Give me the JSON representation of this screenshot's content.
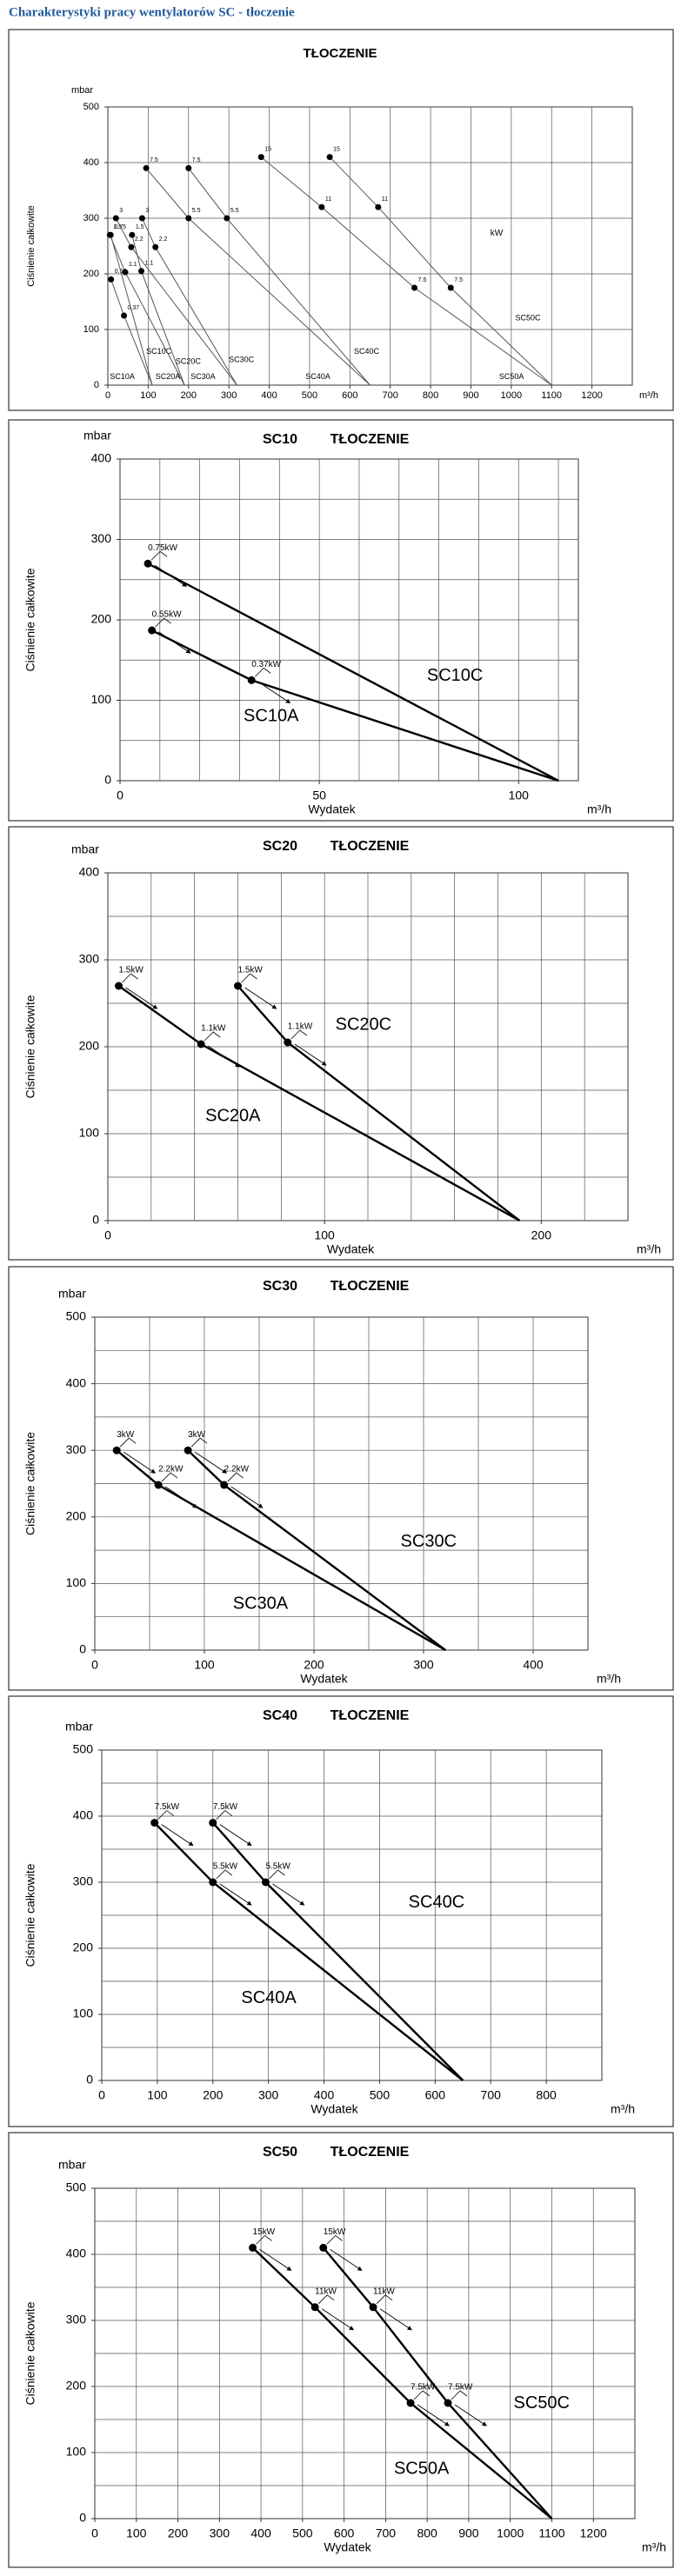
{
  "header": {
    "title": "Charakterystyki pracy wentylatorów SC - tłoczenie"
  },
  "chart_data": [
    {
      "type": "line",
      "title": "TŁOCZENIE",
      "y_unit": "mbar",
      "y_label": "Ciśnienie całkowite",
      "x_unit": "m³/h",
      "note": "kW",
      "xlim": [
        0,
        1300
      ],
      "xticks": [
        0,
        100,
        200,
        300,
        400,
        500,
        600,
        700,
        800,
        900,
        1000,
        1100,
        1200
      ],
      "xgrid": [
        100,
        200,
        300,
        400,
        500,
        600,
        700,
        800,
        900,
        1000,
        1100,
        1200
      ],
      "ylim": [
        0,
        500
      ],
      "yticks": [
        0,
        100,
        200,
        300,
        400,
        500
      ],
      "ygrid": [
        100,
        200,
        300,
        400
      ],
      "series": [
        {
          "name": "SC10A",
          "color": "#555555",
          "x": [
            8,
            40,
            110
          ],
          "values": [
            190,
            125,
            0
          ],
          "value_labels": [
            "0.55",
            "0.37",
            null
          ]
        },
        {
          "name": "SC10C",
          "color": "#555555",
          "x": [
            7,
            110
          ],
          "values": [
            270,
            0
          ],
          "value_labels": [
            "0.75",
            null
          ]
        },
        {
          "name": "SC20A",
          "color": "#555555",
          "x": [
            5,
            43,
            190
          ],
          "values": [
            270,
            203,
            0
          ],
          "value_labels": [
            "1.5",
            "1.1",
            null
          ]
        },
        {
          "name": "SC20C",
          "color": "#555555",
          "x": [
            60,
            83,
            190
          ],
          "values": [
            270,
            205,
            0
          ],
          "value_labels": [
            "1.5",
            "1.1",
            null
          ]
        },
        {
          "name": "SC30A",
          "color": "#555555",
          "x": [
            20,
            58,
            320
          ],
          "values": [
            300,
            248,
            0
          ],
          "value_labels": [
            "3",
            "2.2",
            null
          ]
        },
        {
          "name": "SC30C",
          "color": "#555555",
          "x": [
            85,
            118,
            320
          ],
          "values": [
            300,
            248,
            0
          ],
          "value_labels": [
            "3",
            "2.2",
            null
          ]
        },
        {
          "name": "SC40A",
          "color": "#555555",
          "x": [
            95,
            200,
            650
          ],
          "values": [
            390,
            300,
            0
          ],
          "value_labels": [
            "7.5",
            "5.5",
            null
          ]
        },
        {
          "name": "SC40C",
          "color": "#555555",
          "x": [
            200,
            295,
            650
          ],
          "values": [
            390,
            300,
            0
          ],
          "value_labels": [
            "7.5",
            "5.5",
            null
          ]
        },
        {
          "name": "SC50A",
          "color": "#555555",
          "x": [
            380,
            530,
            760,
            1100
          ],
          "values": [
            410,
            320,
            175,
            0
          ],
          "value_labels": [
            "15",
            "11",
            "7.5",
            null
          ]
        },
        {
          "name": "SC50C",
          "color": "#555555",
          "x": [
            550,
            670,
            850,
            1100
          ],
          "values": [
            410,
            320,
            175,
            0
          ],
          "value_labels": [
            "15",
            "11",
            "7.5",
            null
          ]
        }
      ]
    },
    {
      "type": "line",
      "subtitle": "SC10",
      "title": "TŁOCZENIE",
      "y_unit": "mbar",
      "y_label": "Ciśnienie całkowite",
      "x_label": "Wydatek",
      "x_unit": "m³/h",
      "xlim": [
        0,
        115
      ],
      "xticks": [
        0,
        50,
        100
      ],
      "xgrid": [
        10,
        20,
        30,
        40,
        50,
        60,
        70,
        80,
        90,
        100,
        110
      ],
      "ylim": [
        0,
        400
      ],
      "yticks": [
        0,
        100,
        200,
        300,
        400
      ],
      "ygrid": [
        50,
        100,
        150,
        200,
        250,
        300,
        350
      ],
      "series": [
        {
          "name": "SC10C",
          "color": "#000000",
          "x": [
            7,
            110
          ],
          "values": [
            270,
            0
          ],
          "value_labels": [
            "0.75kW",
            null
          ]
        },
        {
          "name": "SC10A",
          "color": "#000000",
          "x": [
            8,
            33,
            110
          ],
          "values": [
            187,
            125,
            0
          ],
          "value_labels": [
            "0.55kW",
            "0.37kW",
            null
          ]
        }
      ]
    },
    {
      "type": "line",
      "subtitle": "SC20",
      "title": "TŁOCZENIE",
      "y_unit": "mbar",
      "y_label": "Ciśnienie całkowite",
      "x_label": "Wydatek",
      "x_unit": "m³/h",
      "xlim": [
        0,
        240
      ],
      "xticks": [
        0,
        100,
        200
      ],
      "xgrid": [
        20,
        40,
        60,
        80,
        100,
        120,
        140,
        160,
        180,
        200,
        220
      ],
      "ylim": [
        0,
        400
      ],
      "yticks": [
        0,
        100,
        200,
        300,
        400
      ],
      "ygrid": [
        50,
        100,
        150,
        200,
        250,
        300,
        350
      ],
      "series": [
        {
          "name": "SC20C",
          "color": "#000000",
          "x": [
            60,
            83,
            190
          ],
          "values": [
            270,
            205,
            0
          ],
          "value_labels": [
            "1.5kW",
            "1.1kW",
            null
          ]
        },
        {
          "name": "SC20A",
          "color": "#000000",
          "x": [
            5,
            43,
            190
          ],
          "values": [
            270,
            203,
            0
          ],
          "value_labels": [
            "1.5kW",
            "1.1kW",
            null
          ]
        }
      ]
    },
    {
      "type": "line",
      "subtitle": "SC30",
      "title": "TŁOCZENIE",
      "y_unit": "mbar",
      "y_label": "Ciśnienie całkowite",
      "x_label": "Wydatek",
      "x_unit": "m³/h",
      "xlim": [
        0,
        450
      ],
      "xticks": [
        0,
        100,
        200,
        300,
        400
      ],
      "xgrid": [
        50,
        100,
        150,
        200,
        250,
        300,
        350,
        400
      ],
      "ylim": [
        0,
        500
      ],
      "yticks": [
        0,
        100,
        200,
        300,
        400,
        500
      ],
      "ygrid": [
        50,
        100,
        150,
        200,
        250,
        300,
        350,
        400,
        450
      ],
      "series": [
        {
          "name": "SC30C",
          "color": "#000000",
          "x": [
            85,
            118,
            320
          ],
          "values": [
            300,
            248,
            0
          ],
          "value_labels": [
            "3kW",
            "2.2kW",
            null
          ]
        },
        {
          "name": "SC30A",
          "color": "#000000",
          "x": [
            20,
            58,
            320
          ],
          "values": [
            300,
            248,
            0
          ],
          "value_labels": [
            "3kW",
            "2.2kW",
            null
          ]
        }
      ]
    },
    {
      "type": "line",
      "subtitle": "SC40",
      "title": "TŁOCZENIE",
      "y_unit": "mbar",
      "y_label": "Ciśnienie całkowite",
      "x_label": "Wydatek",
      "x_unit": "m³/h",
      "xlim": [
        0,
        900
      ],
      "xticks": [
        0,
        100,
        200,
        300,
        400,
        500,
        600,
        700,
        800
      ],
      "xgrid": [
        100,
        200,
        300,
        400,
        500,
        600,
        700,
        800
      ],
      "ylim": [
        0,
        500
      ],
      "yticks": [
        0,
        100,
        200,
        300,
        400,
        500
      ],
      "ygrid": [
        50,
        100,
        150,
        200,
        250,
        300,
        350,
        400,
        450
      ],
      "series": [
        {
          "name": "SC40C",
          "color": "#000000",
          "x": [
            200,
            295,
            650
          ],
          "values": [
            390,
            300,
            0
          ],
          "value_labels": [
            "7.5kW",
            "5.5kW",
            null
          ]
        },
        {
          "name": "SC40A",
          "color": "#000000",
          "x": [
            95,
            200,
            650
          ],
          "values": [
            390,
            300,
            0
          ],
          "value_labels": [
            "7.5kW",
            "5.5kW",
            null
          ]
        }
      ]
    },
    {
      "type": "line",
      "subtitle": "SC50",
      "title": "TŁOCZENIE",
      "y_unit": "mbar",
      "y_label": "Ciśnienie całkowite",
      "x_label": "Wydatek",
      "x_unit": "m³/h",
      "xlim": [
        0,
        1300
      ],
      "xticks": [
        0,
        100,
        200,
        300,
        400,
        500,
        600,
        700,
        800,
        900,
        1000,
        1100,
        1200
      ],
      "xgrid": [
        100,
        200,
        300,
        400,
        500,
        600,
        700,
        800,
        900,
        1000,
        1100,
        1200
      ],
      "ylim": [
        0,
        500
      ],
      "yticks": [
        0,
        100,
        200,
        300,
        400,
        500
      ],
      "ygrid": [
        50,
        100,
        150,
        200,
        250,
        300,
        350,
        400,
        450
      ],
      "series": [
        {
          "name": "SC50C",
          "color": "#000000",
          "x": [
            550,
            670,
            850,
            1100
          ],
          "values": [
            410,
            320,
            175,
            0
          ],
          "value_labels": [
            "15kW",
            "11kW",
            "7.5kW",
            null
          ]
        },
        {
          "name": "SC50A",
          "color": "#000000",
          "x": [
            380,
            530,
            760,
            1100
          ],
          "values": [
            410,
            320,
            175,
            0
          ],
          "value_labels": [
            "15kW",
            "11kW",
            "7.5kW",
            null
          ]
        }
      ]
    }
  ]
}
